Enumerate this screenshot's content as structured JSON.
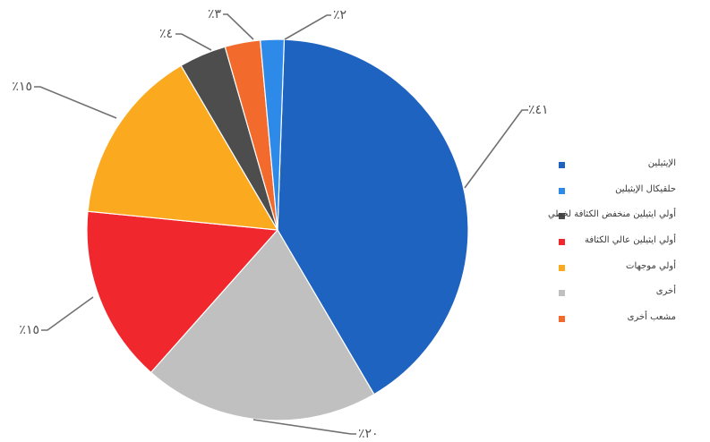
{
  "chart_data": {
    "type": "pie",
    "title": "",
    "slices": [
      {
        "label": "الإيثيلين",
        "value": 41,
        "display": "٪٤١",
        "color": "#1f63c1"
      },
      {
        "label": "حلقيكال الإيثيلين",
        "value": 2,
        "display": "٪٢",
        "color": "#2e8ae8"
      },
      {
        "label": "أولي ايثيلين منخفض الكثافة لخطي",
        "value": 4,
        "display": "٪٤",
        "color": "#4d4d4d"
      },
      {
        "label": "أولي ايثيلين عالي الكثافة",
        "value": 15,
        "display": "٪١٥",
        "color": "#f0272c"
      },
      {
        "label": "أولي موجهات",
        "value": 15,
        "display": "٪١٥",
        "color": "#fbaa20"
      },
      {
        "label": "أخرى",
        "value": 20,
        "display": "٪٢٠",
        "color": "#c0c0c0"
      },
      {
        "label": "مشعب أخرى",
        "value": 3,
        "display": "٪٣",
        "color": "#f26a2c"
      }
    ],
    "drawing_order": [
      0,
      5,
      3,
      4,
      2,
      6,
      1
    ],
    "legend": {
      "position": "right",
      "order": [
        0,
        1,
        2,
        3,
        4,
        5,
        6
      ]
    }
  }
}
